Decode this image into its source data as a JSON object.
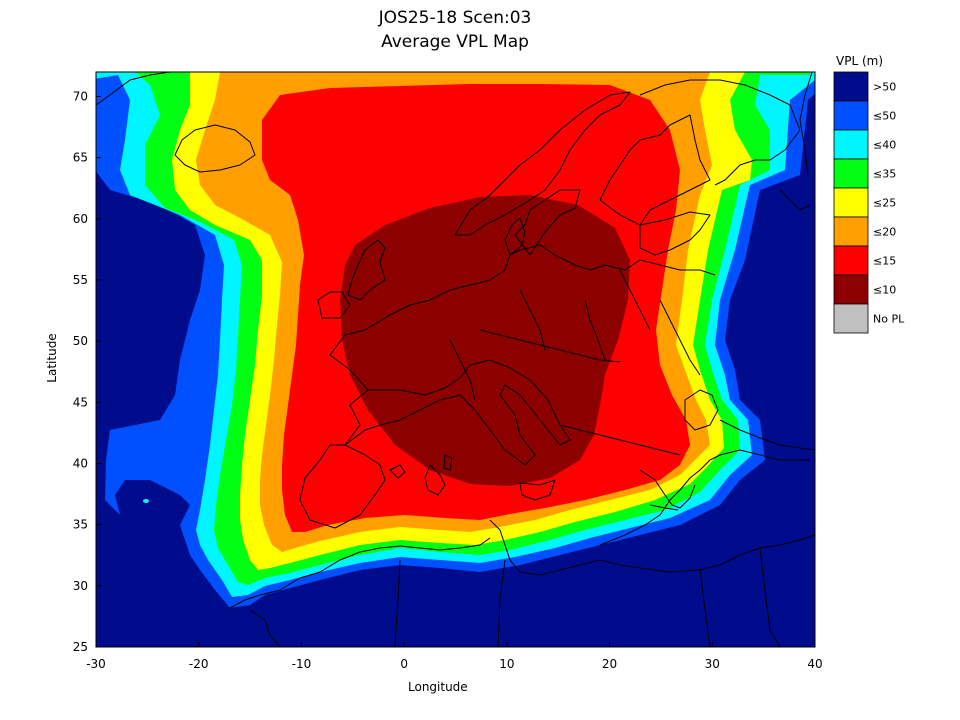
{
  "title_line1": "JOS25-18 Scen:03",
  "title_line2": "Average VPL Map",
  "xlabel": "Longitude",
  "ylabel": "Latitude",
  "legend_title": "VPL (m)",
  "x_ticks": [
    "-30",
    "-20",
    "-10",
    "0",
    "10",
    "20",
    "30",
    "40"
  ],
  "y_ticks": [
    "25",
    "30",
    "35",
    "40",
    "45",
    "50",
    "55",
    "60",
    "65",
    "70"
  ],
  "colors": {
    "gt50": "#000c8c",
    "le50": "#0050ff",
    "le40": "#00f6ff",
    "le35": "#00ff12",
    "le25": "#ffff00",
    "le20": "#ffa000",
    "le15": "#ff0000",
    "le10": "#8c0000",
    "nopl": "#c0c0c0"
  },
  "legend": [
    {
      "label": ">50",
      "color": "#000c8c"
    },
    {
      "label": "≤50",
      "color": "#0050ff"
    },
    {
      "label": "≤40",
      "color": "#00f6ff"
    },
    {
      "label": "≤35",
      "color": "#00ff12"
    },
    {
      "label": "≤25",
      "color": "#ffff00"
    },
    {
      "label": "≤20",
      "color": "#ffa000"
    },
    {
      "label": "≤15",
      "color": "#ff0000"
    },
    {
      "label": "≤10",
      "color": "#8c0000"
    },
    {
      "label": "No PL",
      "color": "#c0c0c0"
    }
  ],
  "map_extent": {
    "lon": [
      -30,
      40
    ],
    "lat": [
      25,
      72
    ]
  }
}
